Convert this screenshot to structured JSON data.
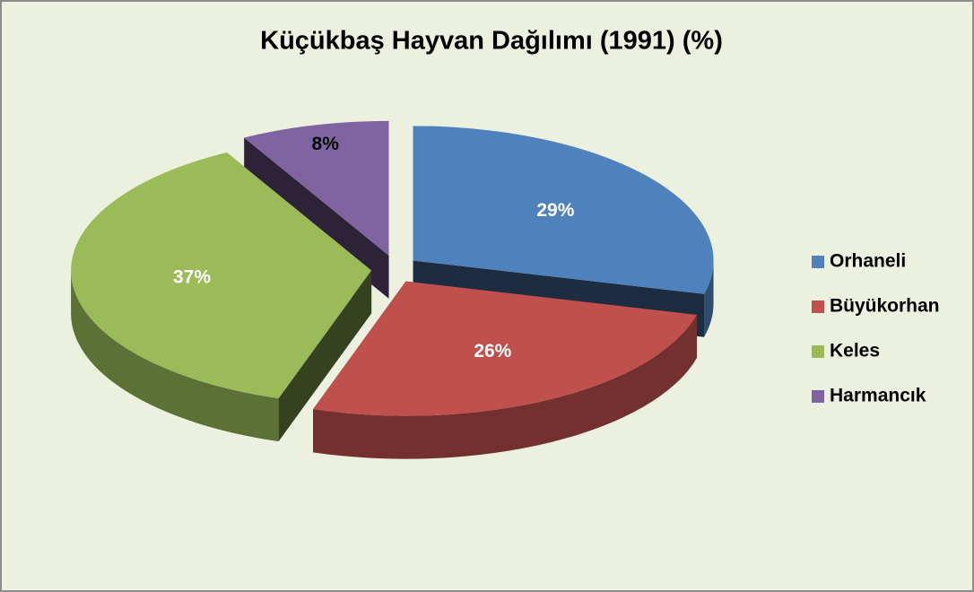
{
  "chart_data": {
    "type": "pie",
    "title": "Küçükbaş Hayvan Dağılımı (1991) (%)",
    "categories": [
      "Orhaneli",
      "Büyükorhan",
      "Keles",
      "Harmancık"
    ],
    "values": [
      29,
      26,
      37,
      8
    ],
    "value_labels": [
      "29%",
      "26%",
      "37%",
      "8%"
    ],
    "colors": [
      "#4f81bd",
      "#c0504d",
      "#9bbb59",
      "#8064a2"
    ],
    "legend": "right"
  }
}
